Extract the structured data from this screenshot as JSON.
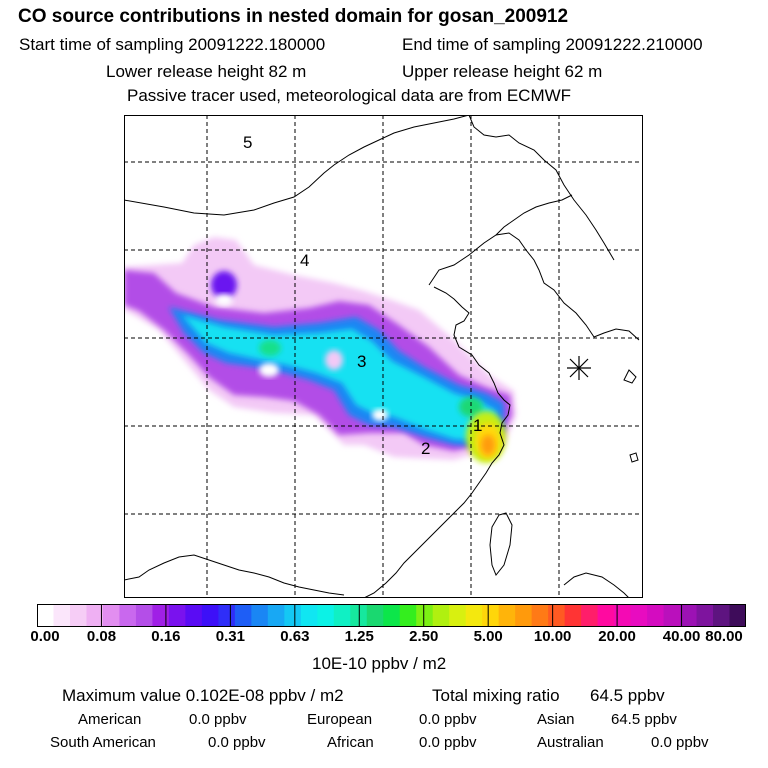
{
  "header": {
    "title": "CO  source contributions in nested domain for gosan_200912",
    "start": "Start time of sampling 20091222.180000",
    "end": "End time of sampling 20091222.210000",
    "lower": "Lower release height   82 m",
    "upper": "Upper release height   62 m",
    "note": "Passive tracer used, meteorological data are from ECMWF"
  },
  "map": {
    "region_labels": [
      "5",
      "4",
      "3",
      "2",
      "1"
    ],
    "receptor_icon": "asterisk-icon"
  },
  "colorbar": {
    "colors": [
      "#ffffff",
      "#fbe6fb",
      "#f6cdf6",
      "#efb0f3",
      "#e28ef0",
      "#c968ee",
      "#b44ee8",
      "#a020e6",
      "#7a12ee",
      "#5a0cf4",
      "#3d10f8",
      "#2f2ef8",
      "#1e5ef6",
      "#1a86f4",
      "#18a8f4",
      "#14c8f4",
      "#10e6f2",
      "#0cf2e6",
      "#10f0c4",
      "#16e89e",
      "#1ad870",
      "#0ce64a",
      "#34ee1e",
      "#7cf014",
      "#b0f010",
      "#d8f010",
      "#f4e80e",
      "#ffd60a",
      "#ffb40a",
      "#ff9a0c",
      "#ff7a16",
      "#ff5a22",
      "#ff3434",
      "#ff1e6a",
      "#ff0aa0",
      "#f40ab4",
      "#e80cc0",
      "#d40cc0",
      "#ba10bc",
      "#9c12b4",
      "#7e149e",
      "#5e1480",
      "#3e0c5a"
    ],
    "tick_labels": [
      "0.00",
      "0.08",
      "0.16",
      "0.31",
      "0.63",
      "1.25",
      "2.50",
      "5.00",
      "10.00",
      "20.00",
      "40.00",
      "80.00"
    ],
    "unit": "10E-10 ppbv / m2"
  },
  "summary": {
    "maximum_value": "Maximum value  0.102E-08 ppbv / m2",
    "total_label": "Total mixing ratio",
    "total_value": "64.5 ppbv",
    "rows": [
      [
        {
          "label": "American",
          "value": "0.0 ppbv"
        },
        {
          "label": "European",
          "value": "0.0 ppbv"
        },
        {
          "label": "Asian",
          "value": "64.5 ppbv"
        }
      ],
      [
        {
          "label": "South American",
          "value": "0.0 ppbv"
        },
        {
          "label": "African",
          "value": "0.0 ppbv"
        },
        {
          "label": "Australian",
          "value": "0.0 ppbv"
        }
      ]
    ]
  }
}
